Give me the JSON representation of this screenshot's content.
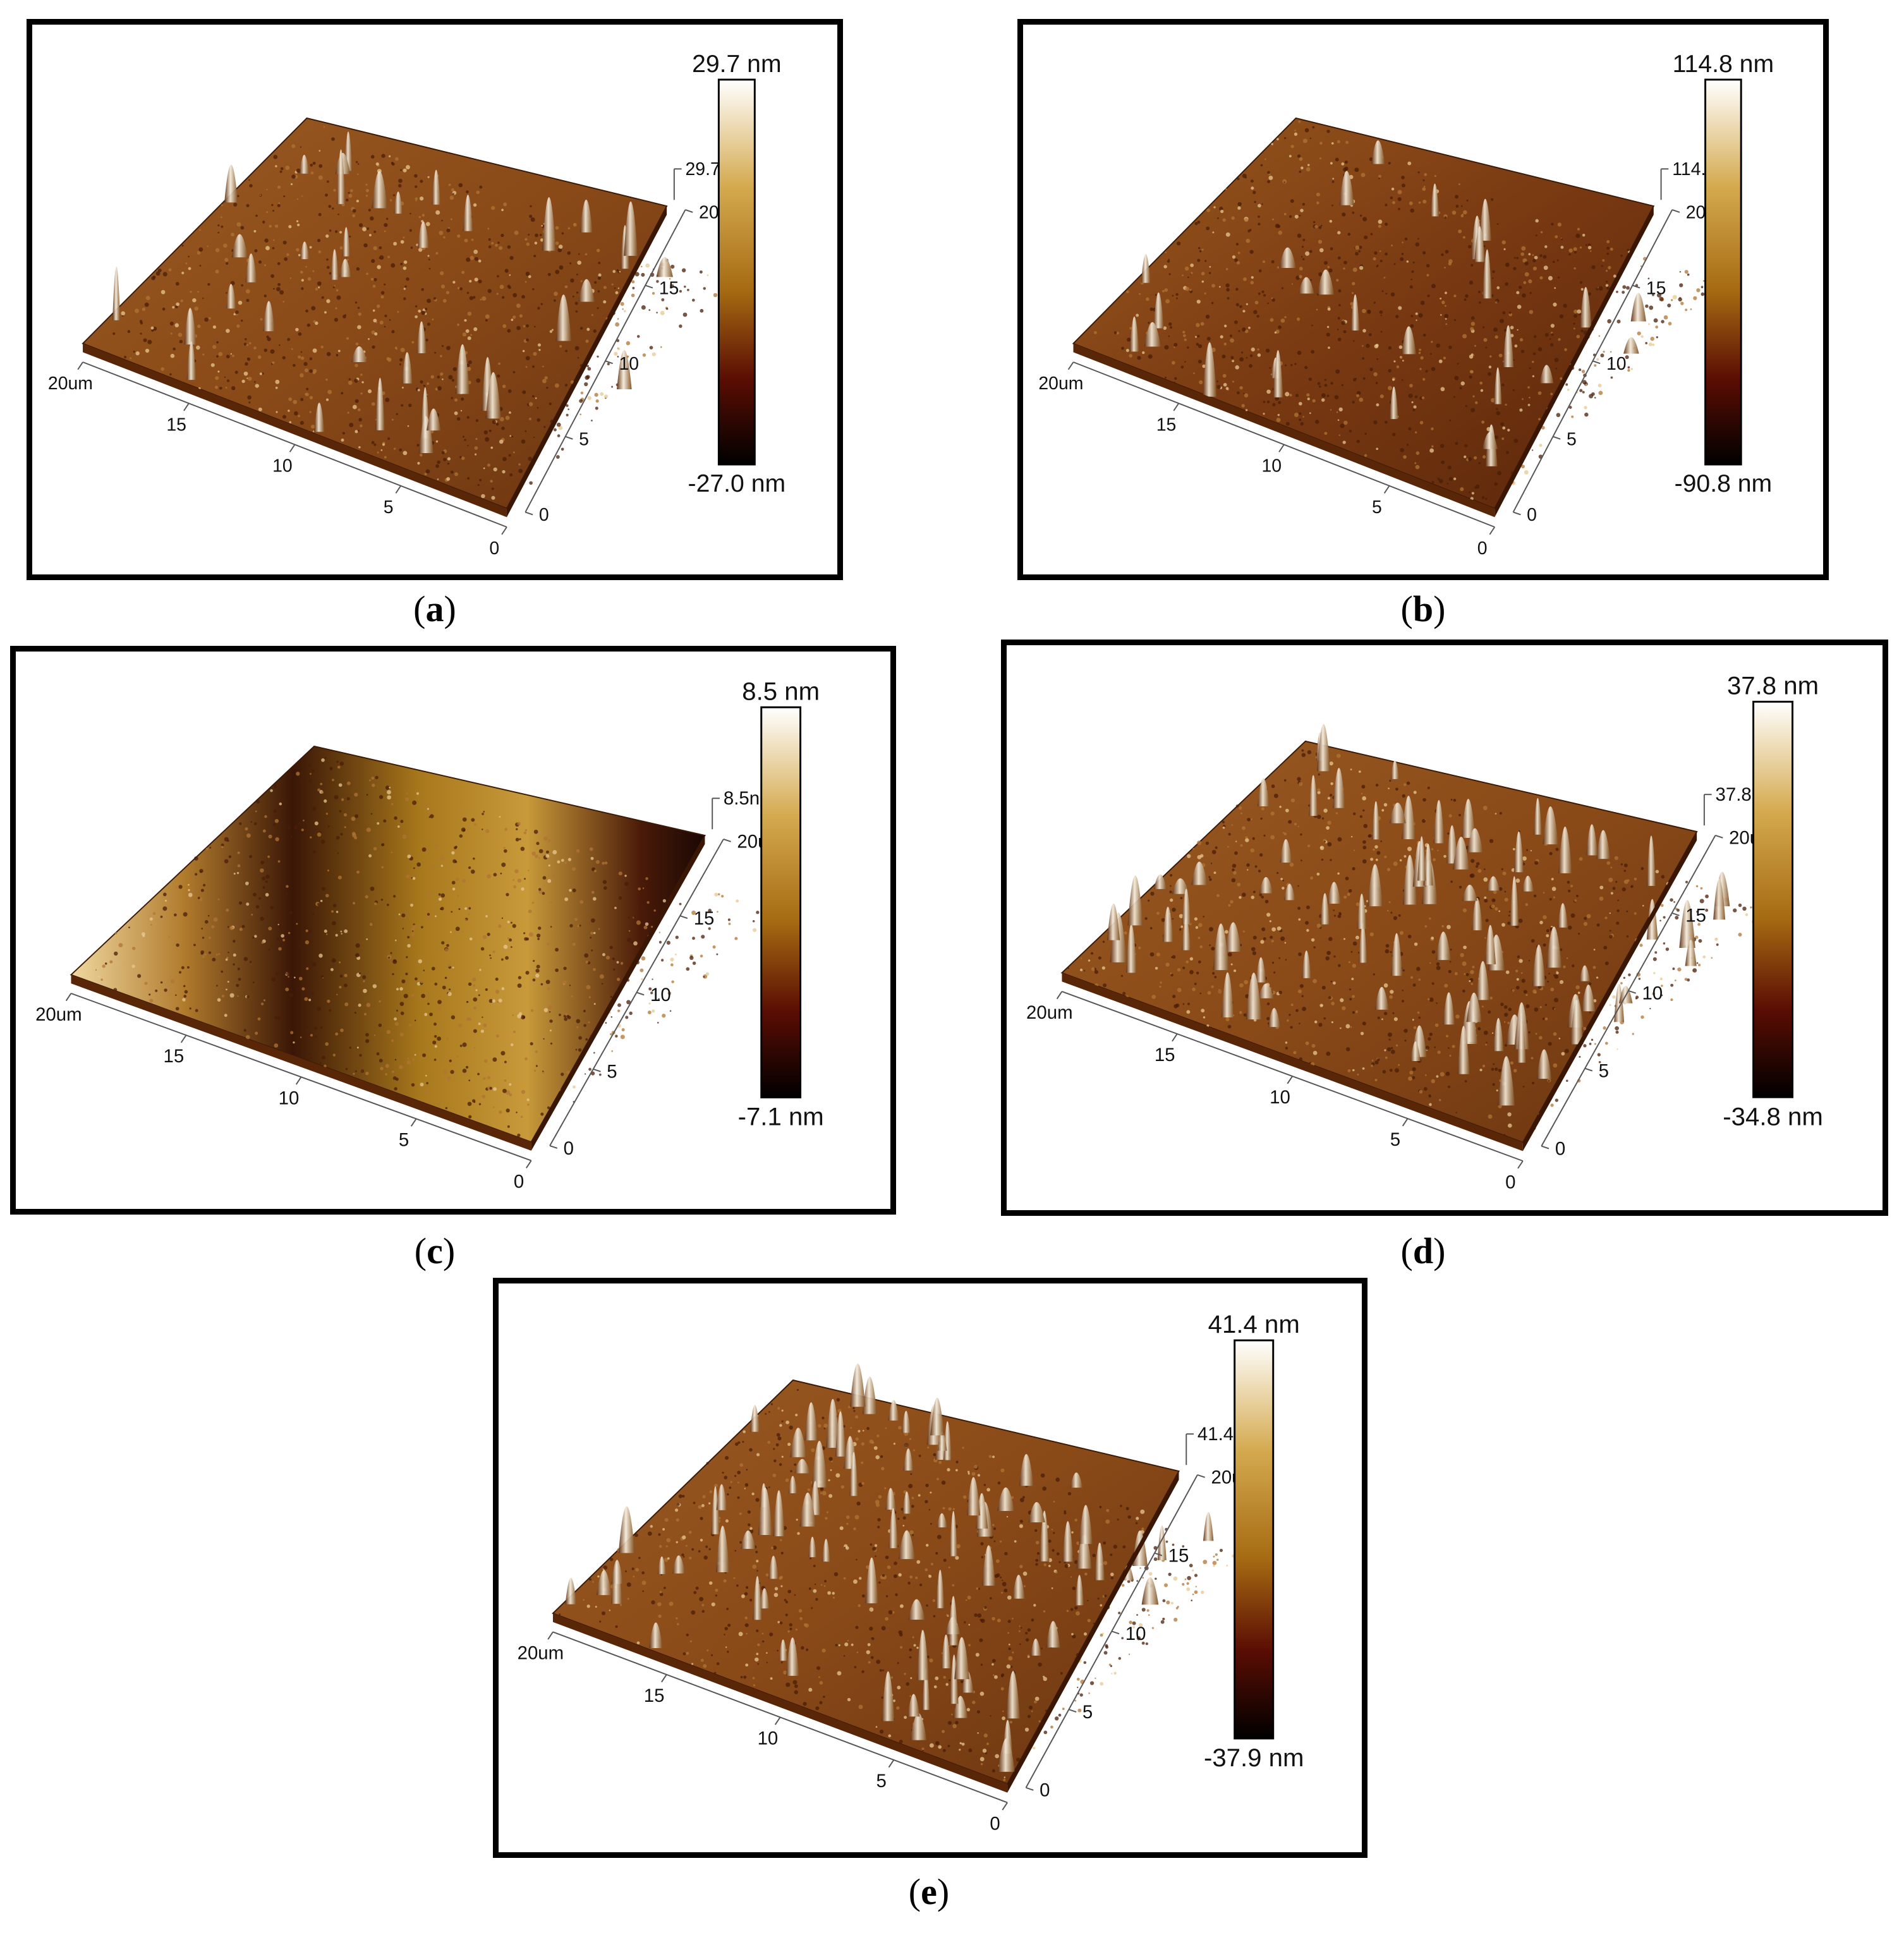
{
  "panels": [
    {
      "id": "a",
      "caption": "a",
      "colorbar_max": "29.7 nm",
      "colorbar_min": "-27.0 nm",
      "z_label": "29.7nm",
      "x_axis_ticks": [
        "20um",
        "15",
        "10",
        "5",
        "0"
      ],
      "y_axis_ticks": [
        "0",
        "5",
        "10",
        "15",
        "20um"
      ],
      "texture": "peaks-sparse"
    },
    {
      "id": "b",
      "caption": "b",
      "colorbar_max": "114.8 nm",
      "colorbar_min": "-90.8 nm",
      "z_label": "114.8nm",
      "x_axis_ticks": [
        "20um",
        "15",
        "10",
        "5",
        "0"
      ],
      "y_axis_ticks": [
        "0",
        "5",
        "10",
        "15",
        "20um"
      ],
      "texture": "smooth-dark"
    },
    {
      "id": "c",
      "caption": "c",
      "colorbar_max": "8.5 nm",
      "colorbar_min": "-7.1 nm",
      "z_label": "8.5nm",
      "x_axis_ticks": [
        "20um",
        "15",
        "10",
        "5",
        "0"
      ],
      "y_axis_ticks": [
        "0",
        "5",
        "10",
        "15",
        "20um"
      ],
      "texture": "wavy"
    },
    {
      "id": "d",
      "caption": "d",
      "colorbar_max": "37.8 nm",
      "colorbar_min": "-34.8 nm",
      "z_label": "37.8nm",
      "x_axis_ticks": [
        "20um",
        "15",
        "10",
        "5",
        "0"
      ],
      "y_axis_ticks": [
        "0",
        "5",
        "10",
        "15",
        "20um"
      ],
      "texture": "peaks-dense"
    },
    {
      "id": "e",
      "caption": "e",
      "colorbar_max": "41.4 nm",
      "colorbar_min": "-37.9 nm",
      "z_label": "41.4nm",
      "x_axis_ticks": [
        "20um",
        "15",
        "10",
        "5",
        "0"
      ],
      "y_axis_ticks": [
        "0",
        "5",
        "10",
        "15",
        "20um"
      ],
      "texture": "peaks-dense"
    }
  ],
  "colors": {
    "colorbar_top": "#ffffff",
    "colorbar_upper": "#d4a94e",
    "colorbar_mid": "#a56a12",
    "colorbar_low": "#5a0d03",
    "colorbar_bottom": "#000000",
    "surface_base": "#8a4a1a"
  }
}
